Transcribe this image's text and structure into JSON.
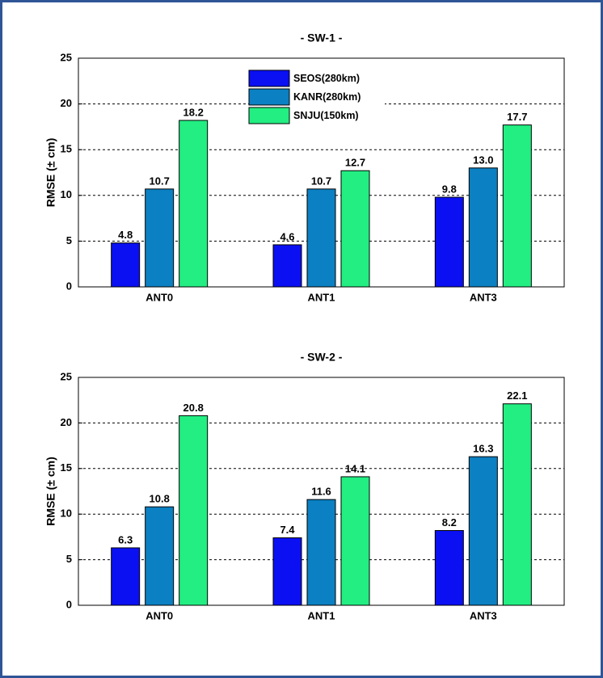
{
  "chart_data": [
    {
      "type": "bar",
      "title": "- SW-1 -",
      "ylabel": "RMSE (± cm)",
      "categories": [
        "ANT0",
        "ANT1",
        "ANT3"
      ],
      "series": [
        {
          "name": "SEOS(280km)",
          "color": "#0a10f2",
          "values": [
            4.8,
            4.6,
            9.8
          ],
          "value_labels": [
            "4.8",
            "4.6",
            "9.8"
          ]
        },
        {
          "name": "KANR(280km)",
          "color": "#0b80c2",
          "values": [
            10.7,
            10.7,
            13.0
          ],
          "value_labels": [
            "10.7",
            "10.7",
            "13.0"
          ]
        },
        {
          "name": "SNJU(150km)",
          "color": "#22ee82",
          "values": [
            18.2,
            12.7,
            17.7
          ],
          "value_labels": [
            "18.2",
            "12.7",
            "17.7"
          ]
        }
      ],
      "ylim": [
        0,
        25
      ],
      "yticks": [
        0,
        5,
        10,
        15,
        20,
        25
      ],
      "grid": true,
      "legend": "top-center"
    },
    {
      "type": "bar",
      "title": "- SW-2 -",
      "ylabel": "RMSE (± cm)",
      "categories": [
        "ANT0",
        "ANT1",
        "ANT3"
      ],
      "series": [
        {
          "color": "#0a10f2",
          "values": [
            6.3,
            7.4,
            8.2
          ],
          "value_labels": [
            "6.3",
            "7.4",
            "8.2"
          ]
        },
        {
          "color": "#0b80c2",
          "values": [
            10.8,
            11.6,
            16.3
          ],
          "value_labels": [
            "10.8",
            "11.6",
            "16.3"
          ]
        },
        {
          "color": "#22ee82",
          "values": [
            20.8,
            14.1,
            22.1
          ],
          "value_labels": [
            "20.8",
            "14.1",
            "22.1"
          ]
        }
      ],
      "ylim": [
        0,
        25
      ],
      "yticks": [
        0,
        5,
        10,
        15,
        20,
        25
      ],
      "grid": true
    }
  ]
}
